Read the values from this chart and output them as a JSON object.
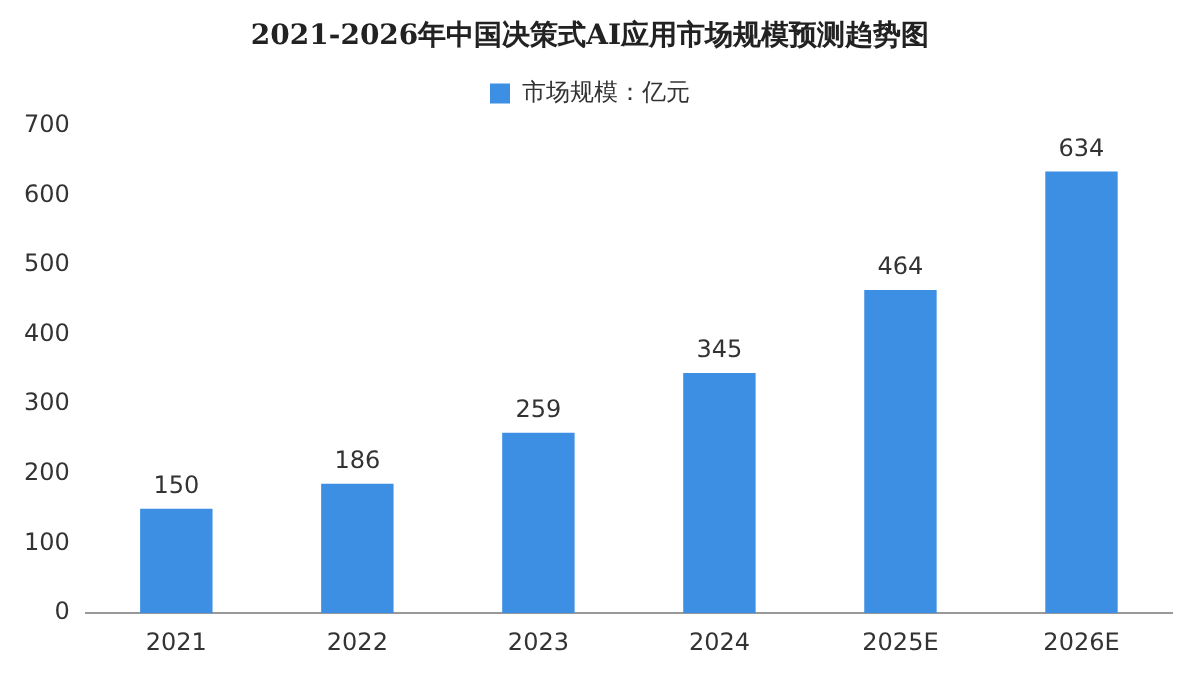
{
  "chart_data": {
    "type": "bar",
    "title": "2021-2026年中国决策式AI应用市场规模预测趋势图",
    "categories": [
      "2021",
      "2022",
      "2023",
      "2024",
      "2025E",
      "2026E"
    ],
    "series": [
      {
        "name": "市场规模：亿元",
        "color": "#3d8fe3",
        "values": [
          150,
          186,
          259,
          345,
          464,
          634
        ]
      }
    ],
    "ylim": [
      0,
      700
    ],
    "yticks": [
      0,
      100,
      200,
      300,
      400,
      500,
      600,
      700
    ],
    "grid": false,
    "legend": "top",
    "data_labels": true
  }
}
